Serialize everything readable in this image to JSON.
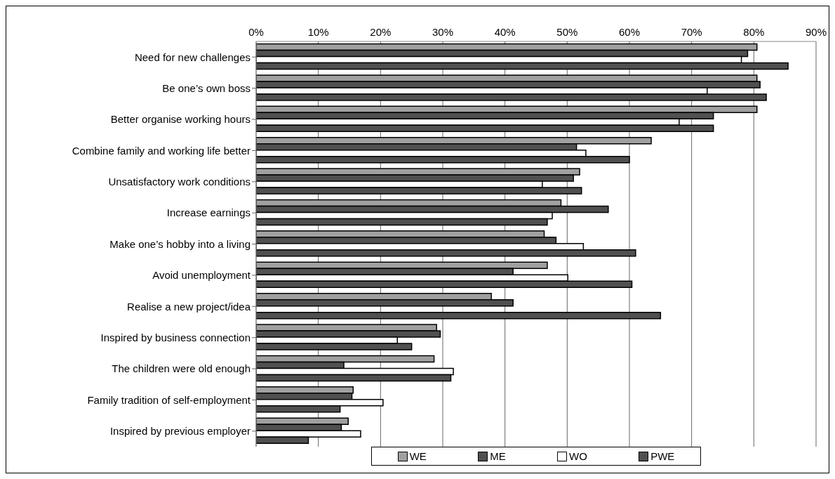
{
  "chart_data": {
    "type": "bar",
    "orientation": "horizontal",
    "categories": [
      "Need for new challenges",
      "Be one’s own boss",
      "Better organise working hours",
      "Combine family and working life better",
      "Unsatisfactory work conditions",
      "Increase earnings",
      "Make one’s hobby into a living",
      "Avoid unemployment",
      "Realise a new project/idea",
      "Inspired by business connection",
      "The children were old enough",
      "Family tradition of self-employment",
      "Inspired by previous employer"
    ],
    "series": [
      {
        "name": "WE",
        "color": "#a0a0a0",
        "values": [
          80.5,
          80.5,
          80.5,
          63.5,
          52,
          49,
          46.3,
          46.8,
          37.8,
          29,
          28.6,
          15.6,
          14.8
        ]
      },
      {
        "name": "ME",
        "color": "#505050",
        "values": [
          79,
          81,
          73.5,
          51.5,
          51,
          56.6,
          48.2,
          41.3,
          41.3,
          29.6,
          14.1,
          15.4,
          13.7
        ]
      },
      {
        "name": "WO",
        "color": "#ffffff",
        "values": [
          78,
          72.5,
          68,
          53,
          46,
          47.6,
          52.6,
          50.1,
          null,
          22.7,
          31.7,
          20.4,
          16.8
        ]
      },
      {
        "name": "PWE",
        "color": "#505050",
        "values": [
          85.5,
          82,
          73.5,
          60,
          52.3,
          46.8,
          61,
          60.4,
          65,
          25,
          31.3,
          13.5,
          8.4
        ]
      }
    ],
    "xlim": [
      0,
      90
    ],
    "xticks": [
      {
        "value": 0,
        "label": "0%"
      },
      {
        "value": 10,
        "label": "10%"
      },
      {
        "value": 20,
        "label": "20%"
      },
      {
        "value": 30,
        "label": "30%"
      },
      {
        "value": 40,
        "label": "40%"
      },
      {
        "value": 50,
        "label": "50%"
      },
      {
        "value": 60,
        "label": "60%"
      },
      {
        "value": 70,
        "label": "70%"
      },
      {
        "value": 80,
        "label": "80%"
      },
      {
        "value": 90,
        "label": "90%"
      }
    ],
    "grid": "x",
    "legend": "bottom"
  }
}
